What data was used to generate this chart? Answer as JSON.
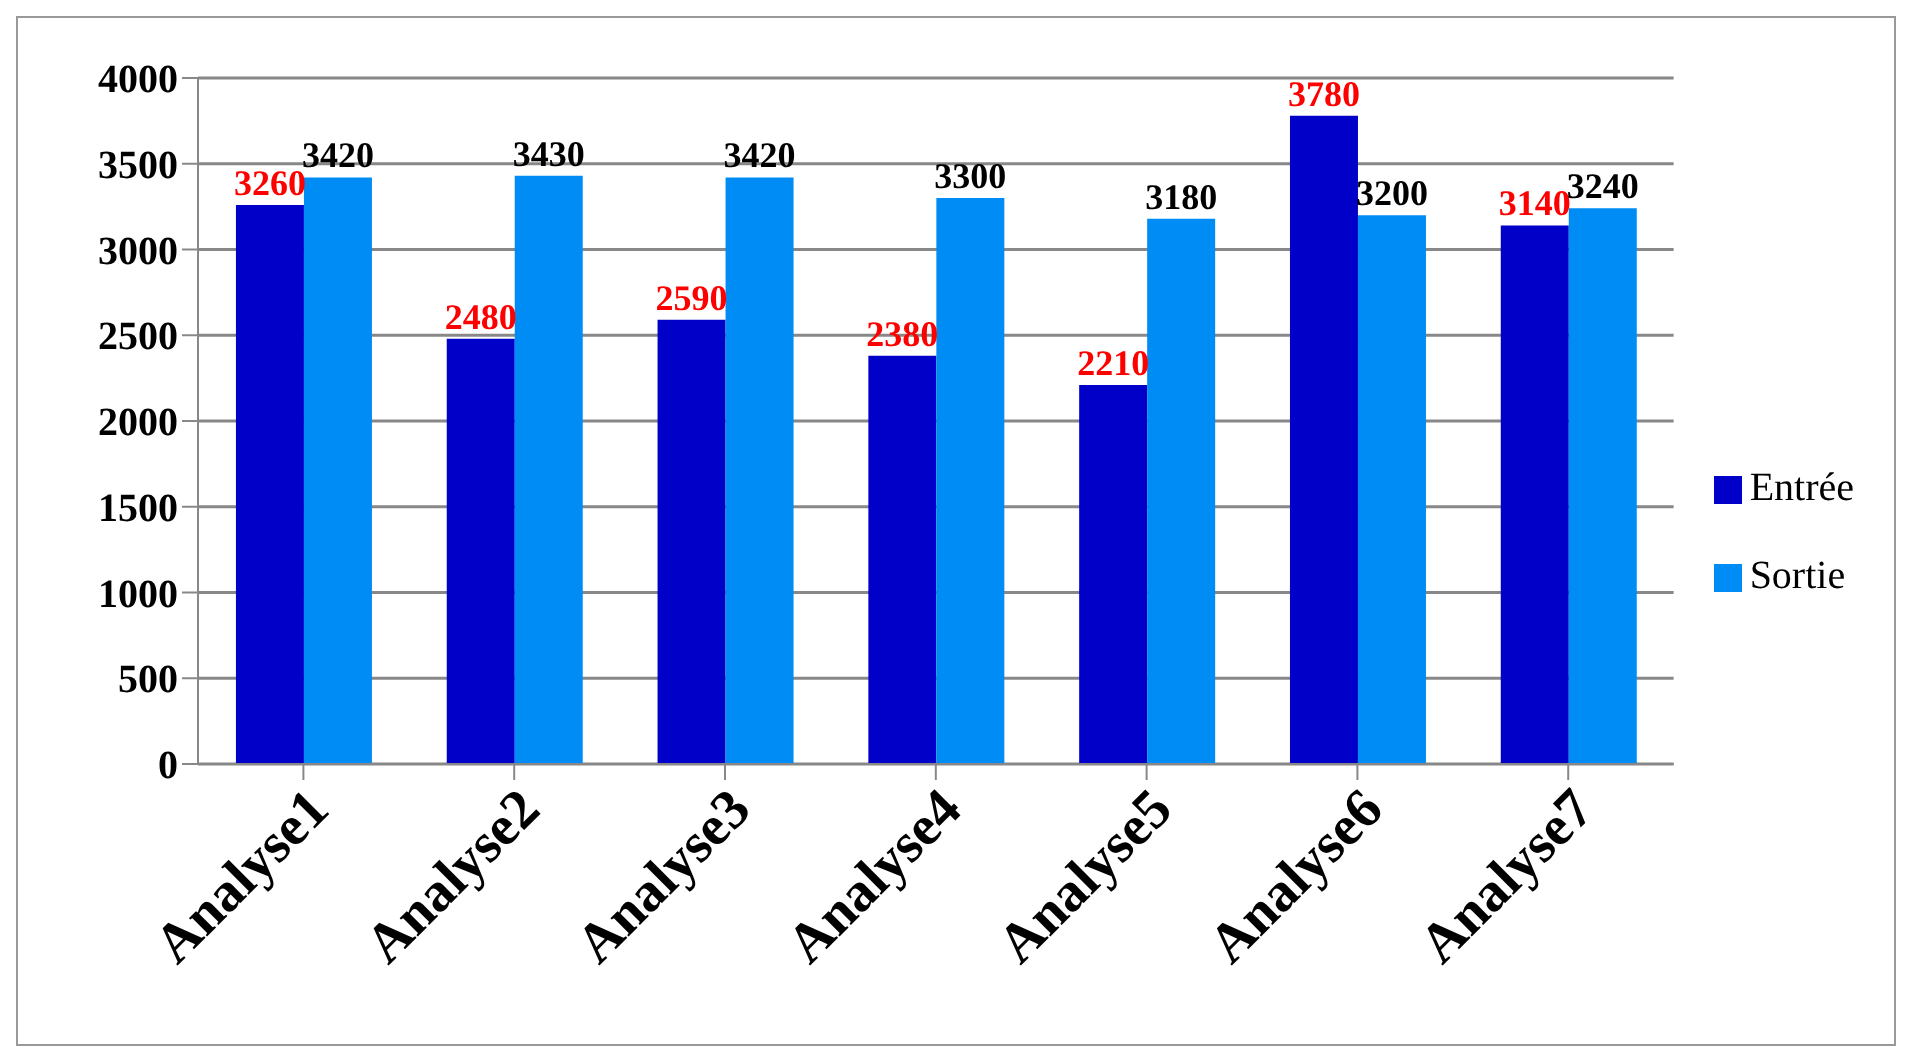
{
  "chart_data": {
    "type": "bar",
    "categories": [
      "Analyse1",
      "Analyse2",
      "Analyse3",
      "Analyse4",
      "Analyse5",
      "Analyse6",
      "Analyse7"
    ],
    "series": [
      {
        "name": "Entrée",
        "color": "#0000c8",
        "values": [
          3260,
          2480,
          2590,
          2380,
          2210,
          3780,
          3140
        ]
      },
      {
        "name": "Sortie",
        "color": "#008cf5",
        "values": [
          3420,
          3430,
          3420,
          3300,
          3180,
          3200,
          3240
        ]
      }
    ],
    "ylim": [
      0,
      4000
    ],
    "yticks": [
      0,
      500,
      1000,
      1500,
      2000,
      2500,
      3000,
      3500,
      4000
    ],
    "grid": "y",
    "legend": "right",
    "data_labels": true
  }
}
